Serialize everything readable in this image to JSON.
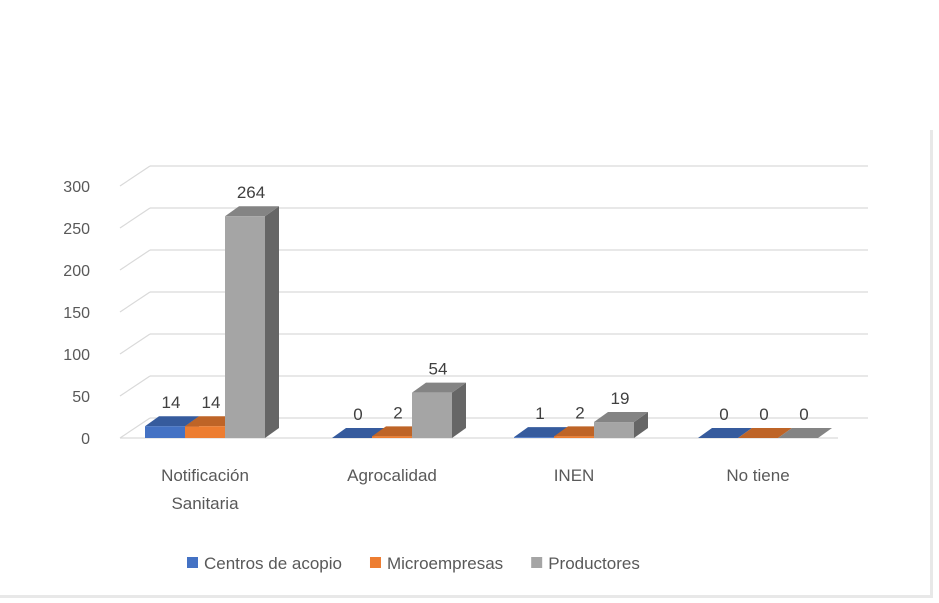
{
  "chart_data": {
    "type": "bar",
    "subtype": "3d-clustered-column",
    "categories": [
      [
        "Notificación",
        "Sanitaria"
      ],
      [
        "Agrocalidad"
      ],
      [
        "INEN"
      ],
      [
        "No tiene"
      ]
    ],
    "series": [
      {
        "name": "Centros de acopio",
        "color": "#4472C4",
        "values": [
          14,
          0,
          1,
          0
        ]
      },
      {
        "name": "Microempresas",
        "color": "#ED7D31",
        "values": [
          14,
          2,
          2,
          0
        ]
      },
      {
        "name": "Productores",
        "color": "#A5A5A5",
        "values": [
          264,
          54,
          19,
          0
        ]
      }
    ],
    "ylim": [
      0,
      300
    ],
    "yticks": [
      0,
      50,
      100,
      150,
      200,
      250,
      300
    ],
    "grid": true,
    "legend_position": "bottom",
    "data_labels": true
  }
}
